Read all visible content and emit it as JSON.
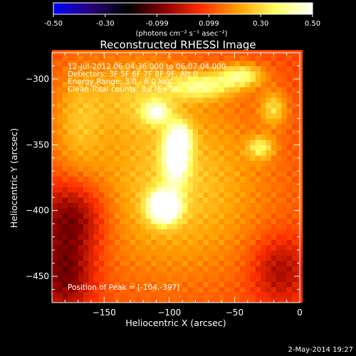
{
  "chart_data": {
    "type": "heatmap",
    "title": "Reconstructed RHESSI Image",
    "xlabel": "Heliocentric X (arcsec)",
    "ylabel": "Heliocentric Y (arcsec)",
    "xlim": [
      -190,
      0
    ],
    "ylim": [
      -470,
      -280
    ],
    "x_ticks": [
      -150,
      -100,
      -50,
      0
    ],
    "y_ticks": [
      -450,
      -400,
      -350,
      -300
    ],
    "annotations": [
      "12-Jul-2012 06:04:36.000 to 06:07:04.000",
      "Detectors: 3F 5F 6F 7F 8F 9F, Att 0",
      "Energy Range: 3.0 - 6.0 keV",
      "Clean     Total counts: 3.27E+04"
    ],
    "peak_label": "Position of Peak = [-104,-397]",
    "peak": {
      "x": -104,
      "y": -397
    },
    "colorbar": {
      "min": -0.5,
      "max": 0.5,
      "ticks": [
        "-0.50",
        "-0.30",
        "-0.099",
        "0.099",
        "0.30",
        "0.50"
      ],
      "unit_label": "(photons cm⁻² s⁻¹ asec⁻²)",
      "colors": [
        "#0000ff",
        "#26007a",
        "#000000",
        "#8a0000",
        "#ff3000",
        "#ffa000",
        "#ffff60",
        "#ffffff"
      ]
    },
    "sources": [
      {
        "x": -104,
        "y": -397,
        "sigma_x": 8,
        "sigma_y": 8,
        "amp": 0.55
      },
      {
        "x": -95,
        "y": -360,
        "sigma_x": 7,
        "sigma_y": 14,
        "amp": 0.35
      },
      {
        "x": -92,
        "y": -345,
        "sigma_x": 6,
        "sigma_y": 8,
        "amp": 0.28
      },
      {
        "x": -110,
        "y": -325,
        "sigma_x": 7,
        "sigma_y": 6,
        "amp": 0.26
      },
      {
        "x": -75,
        "y": -305,
        "sigma_x": 18,
        "sigma_y": 7,
        "amp": 0.24
      },
      {
        "x": -45,
        "y": -297,
        "sigma_x": 12,
        "sigma_y": 6,
        "amp": 0.25
      },
      {
        "x": -20,
        "y": -322,
        "sigma_x": 7,
        "sigma_y": 9,
        "amp": 0.18
      },
      {
        "x": -30,
        "y": -352,
        "sigma_x": 7,
        "sigma_y": 6,
        "amp": 0.2
      },
      {
        "x": -170,
        "y": -330,
        "sigma_x": 14,
        "sigma_y": 30,
        "amp": 0.12
      },
      {
        "x": -125,
        "y": -310,
        "sigma_x": 25,
        "sigma_y": 20,
        "amp": 0.12
      },
      {
        "x": -95,
        "y": -380,
        "sigma_x": 50,
        "sigma_y": 50,
        "amp": 0.18
      }
    ],
    "background": 0.1,
    "dim_regions": [
      {
        "x": -175,
        "y": -405,
        "sigma_x": 18,
        "sigma_y": 20,
        "amp": -0.22
      },
      {
        "x": -180,
        "y": -450,
        "sigma_x": 15,
        "sigma_y": 20,
        "amp": -0.2
      },
      {
        "x": -15,
        "y": -445,
        "sigma_x": 15,
        "sigma_y": 18,
        "amp": -0.15
      }
    ]
  },
  "footer": {
    "timestamp": "2-May-2014 19:27"
  }
}
